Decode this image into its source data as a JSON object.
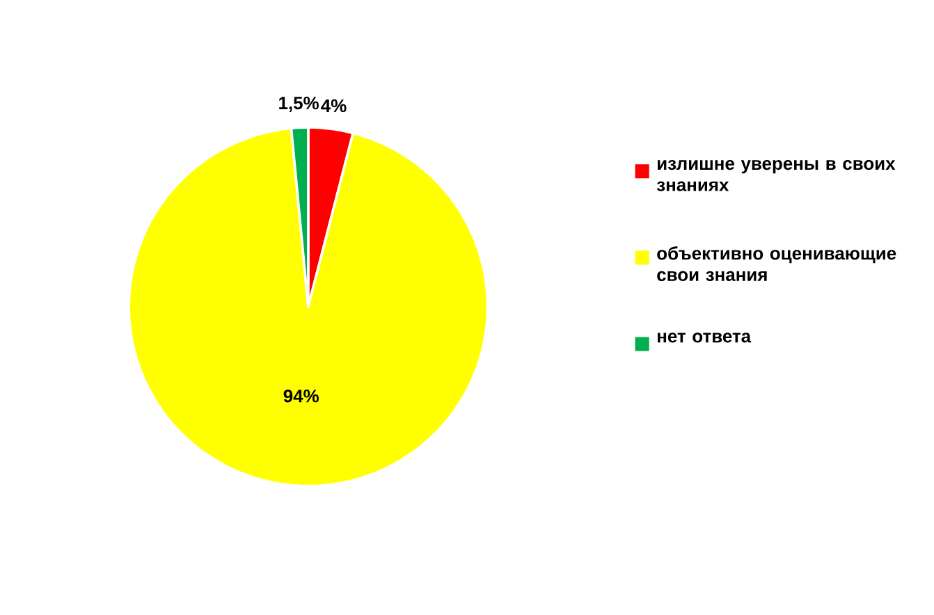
{
  "chart_data": {
    "type": "pie",
    "categories": [
      "излишне уверены в своих знаниях",
      "объективно оценивающие свои знания",
      "нет ответа"
    ],
    "values": [
      4,
      94,
      1.5
    ],
    "colors": [
      "#ff0000",
      "#ffff00",
      "#00b050"
    ],
    "value_labels": [
      "4%",
      "94%",
      "1,5%"
    ],
    "legend": "right"
  }
}
